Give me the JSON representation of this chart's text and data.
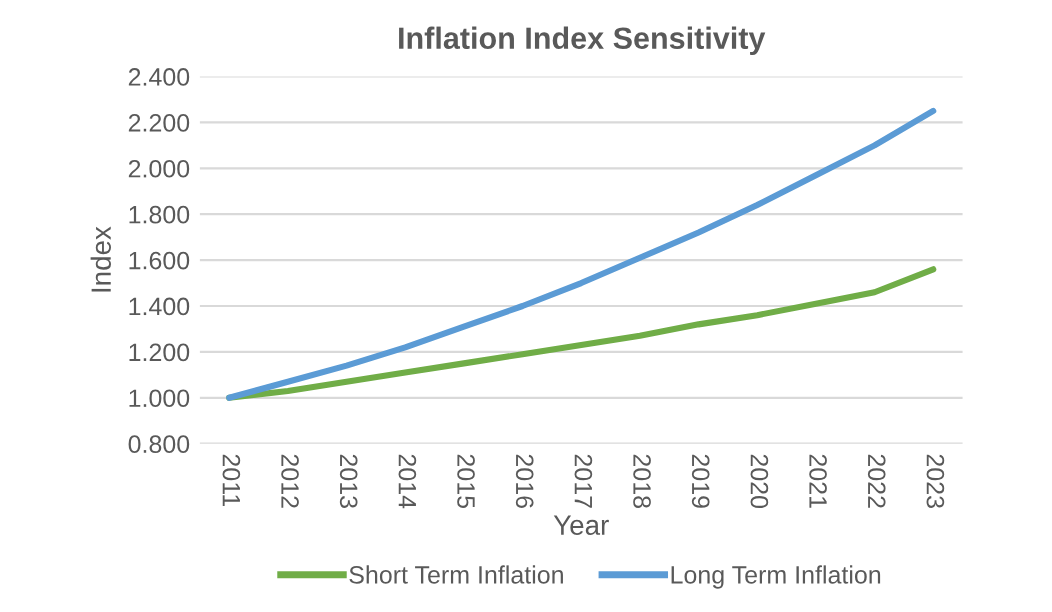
{
  "chart_data": {
    "type": "line",
    "title": "Inflation Index Sensitivity",
    "xlabel": "Year",
    "ylabel": "Index",
    "categories": [
      "2011",
      "2012",
      "2013",
      "2014",
      "2015",
      "2016",
      "2017",
      "2018",
      "2019",
      "2020",
      "2021",
      "2022",
      "2023"
    ],
    "series": [
      {
        "name": "Short Term Inflation",
        "color": "#70ad47",
        "values": [
          1.0,
          1.03,
          1.07,
          1.11,
          1.15,
          1.19,
          1.23,
          1.27,
          1.32,
          1.36,
          1.41,
          1.46,
          1.56
        ]
      },
      {
        "name": "Long Term Inflation",
        "color": "#5b9bd5",
        "values": [
          1.0,
          1.07,
          1.14,
          1.22,
          1.31,
          1.4,
          1.5,
          1.61,
          1.72,
          1.84,
          1.97,
          2.1,
          2.25
        ]
      }
    ],
    "ylim": [
      0.8,
      2.4
    ],
    "yticks": [
      {
        "value": 0.8,
        "label": "0.800"
      },
      {
        "value": 1.0,
        "label": "1.000"
      },
      {
        "value": 1.2,
        "label": "1.200"
      },
      {
        "value": 1.4,
        "label": "1.400"
      },
      {
        "value": 1.6,
        "label": "1.600"
      },
      {
        "value": 1.8,
        "label": "1.800"
      },
      {
        "value": 2.0,
        "label": "2.000"
      },
      {
        "value": 2.2,
        "label": "2.200"
      },
      {
        "value": 2.4,
        "label": "2.400"
      }
    ],
    "grid": "y",
    "legend": "bottom",
    "marker": "none",
    "line_style": "solid"
  }
}
